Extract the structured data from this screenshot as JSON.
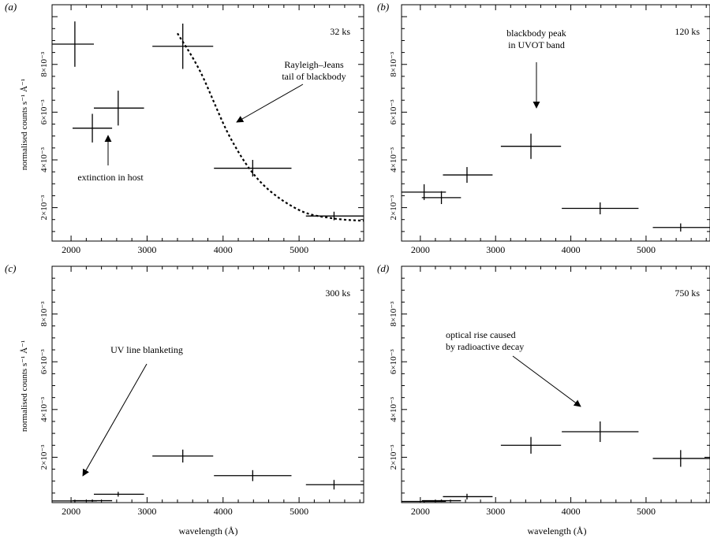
{
  "chart_data": [
    {
      "type": "scatter",
      "panel_label": "(a)",
      "time_label": "32 ks",
      "ylabel": "normalised counts s⁻¹ Å⁻¹",
      "xlabel": "",
      "xlim": [
        1750,
        5850
      ],
      "ylim": [
        0.0006,
        0.0105
      ],
      "xticks": [
        2000,
        3000,
        4000,
        5000
      ],
      "yticks": [
        0.002,
        0.004,
        0.006,
        0.008
      ],
      "ytick_labels": [
        "2×10⁻³",
        "4×10⁻³",
        "6×10⁻³",
        "8×10⁻³"
      ],
      "series": [
        {
          "points": [
            {
              "x": 2050,
              "xerr_lo": 1750,
              "xerr_hi": 2300,
              "y": 0.00885,
              "yerr": 0.00095
            },
            {
              "x": 2280,
              "xerr_lo": 2020,
              "xerr_hi": 2540,
              "y": 0.00533,
              "yerr": 0.0006
            },
            {
              "x": 2620,
              "xerr_lo": 2300,
              "xerr_hi": 2960,
              "y": 0.00617,
              "yerr": 0.00073
            },
            {
              "x": 3470,
              "xerr_lo": 3070,
              "xerr_hi": 3870,
              "y": 0.00876,
              "yerr": 0.00095
            },
            {
              "x": 4390,
              "xerr_lo": 3880,
              "xerr_hi": 4900,
              "y": 0.00365,
              "yerr": 0.00035
            },
            {
              "x": 5460,
              "xerr_lo": 5090,
              "xerr_hi": 5850,
              "y": 0.00165,
              "yerr": 0.00018
            }
          ]
        }
      ],
      "curve": {
        "style": "dotted",
        "points": [
          [
            3400,
            0.0093
          ],
          [
            3700,
            0.0077
          ],
          [
            4100,
            0.0049
          ],
          [
            4500,
            0.00305
          ],
          [
            5000,
            0.0019
          ],
          [
            5450,
            0.00155
          ],
          [
            5850,
            0.00145
          ]
        ]
      },
      "annotations": [
        {
          "lines": [
            "Rayleigh–Jeans",
            "tail of blackbody"
          ],
          "target": [
            4110,
            0.005
          ]
        },
        {
          "lines": [
            "extinction in host"
          ],
          "target": [
            2510,
            0.00485
          ]
        }
      ]
    },
    {
      "type": "scatter",
      "panel_label": "(b)",
      "time_label": "120 ks",
      "ylabel": "",
      "xlabel": "",
      "xlim": [
        1750,
        5850
      ],
      "ylim": [
        0.0006,
        0.0105
      ],
      "xticks": [
        2000,
        3000,
        4000,
        5000
      ],
      "yticks": [
        0.002,
        0.004,
        0.006,
        0.008
      ],
      "ytick_labels": [
        "2×10⁻³",
        "4×10⁻³",
        "6×10⁻³",
        "8×10⁻³"
      ],
      "series": [
        {
          "points": [
            {
              "x": 2050,
              "xerr_lo": 1750,
              "xerr_hi": 2340,
              "y": 0.00265,
              "yerr": 0.00033
            },
            {
              "x": 2280,
              "xerr_lo": 2020,
              "xerr_hi": 2540,
              "y": 0.00242,
              "yerr": 0.00027
            },
            {
              "x": 2620,
              "xerr_lo": 2300,
              "xerr_hi": 2960,
              "y": 0.00337,
              "yerr": 0.00033
            },
            {
              "x": 3470,
              "xerr_lo": 3070,
              "xerr_hi": 3870,
              "y": 0.00457,
              "yerr": 0.00053
            },
            {
              "x": 4390,
              "xerr_lo": 3880,
              "xerr_hi": 4900,
              "y": 0.00197,
              "yerr": 0.00025
            },
            {
              "x": 5460,
              "xerr_lo": 5090,
              "xerr_hi": 5850,
              "y": 0.00117,
              "yerr": 0.00017
            }
          ]
        }
      ],
      "annotations": [
        {
          "lines": [
            "blackbody peak",
            "in UVOT band"
          ],
          "target": [
            3480,
            0.00485
          ]
        }
      ]
    },
    {
      "type": "scatter",
      "panel_label": "(c)",
      "time_label": "300 ks",
      "ylabel": "normalised counts s⁻¹ Å⁻¹",
      "xlabel": "wavelength (Å)",
      "xlim": [
        1750,
        5850
      ],
      "ylim": [
        0.0001,
        0.01
      ],
      "xticks": [
        2000,
        3000,
        4000,
        5000
      ],
      "yticks": [
        0.002,
        0.004,
        0.006,
        0.008
      ],
      "ytick_labels": [
        "2×10⁻³",
        "4×10⁻³",
        "6×10⁻³",
        "8×10⁻³"
      ],
      "series": [
        {
          "points": [
            {
              "x": 2050,
              "xerr_lo": 1750,
              "xerr_hi": 2340,
              "y": 0.00017,
              "yerr": 5e-05
            },
            {
              "x": 2280,
              "xerr_lo": 2020,
              "xerr_hi": 2540,
              "y": 0.00018,
              "yerr": 5e-05
            },
            {
              "x": 2620,
              "xerr_lo": 2300,
              "xerr_hi": 2960,
              "y": 0.00045,
              "yerr": 0.0001
            },
            {
              "x": 3470,
              "xerr_lo": 3070,
              "xerr_hi": 3870,
              "y": 0.00205,
              "yerr": 0.00027
            },
            {
              "x": 4390,
              "xerr_lo": 3880,
              "xerr_hi": 4900,
              "y": 0.00123,
              "yerr": 0.00023
            },
            {
              "x": 5460,
              "xerr_lo": 5090,
              "xerr_hi": 5850,
              "y": 0.00085,
              "yerr": 0.0002
            }
          ]
        }
      ],
      "annotations": [
        {
          "lines": [
            "UV line blanketing"
          ],
          "target": [
            2090,
            0.0008
          ]
        }
      ]
    },
    {
      "type": "scatter",
      "panel_label": "(d)",
      "time_label": "750 ks",
      "ylabel": "",
      "xlabel": "wavelength (Å)",
      "xlim": [
        1750,
        5850
      ],
      "ylim": [
        0.0001,
        0.01
      ],
      "xticks": [
        2000,
        3000,
        4000,
        5000
      ],
      "yticks": [
        0.002,
        0.004,
        0.006,
        0.008
      ],
      "ytick_labels": [
        "2×10⁻³",
        "4×10⁻³",
        "6×10⁻³",
        "8×10⁻³"
      ],
      "series": [
        {
          "points": [
            {
              "x": 2050,
              "xerr_lo": 1750,
              "xerr_hi": 2340,
              "y": 0.00015,
              "yerr": 5e-05
            },
            {
              "x": 2280,
              "xerr_lo": 2020,
              "xerr_hi": 2540,
              "y": 0.00018,
              "yerr": 5e-05
            },
            {
              "x": 2620,
              "xerr_lo": 2300,
              "xerr_hi": 2960,
              "y": 0.00035,
              "yerr": 0.00012
            },
            {
              "x": 3470,
              "xerr_lo": 3070,
              "xerr_hi": 3870,
              "y": 0.0025,
              "yerr": 0.00035
            },
            {
              "x": 4390,
              "xerr_lo": 3880,
              "xerr_hi": 4900,
              "y": 0.00307,
              "yerr": 0.00043
            },
            {
              "x": 5460,
              "xerr_lo": 5090,
              "xerr_hi": 5850,
              "y": 0.00195,
              "yerr": 0.00035
            }
          ]
        }
      ],
      "annotations": [
        {
          "lines": [
            "optical rise caused",
            "by radioactive decay"
          ],
          "target": [
            4140,
            0.00402
          ]
        }
      ]
    }
  ]
}
